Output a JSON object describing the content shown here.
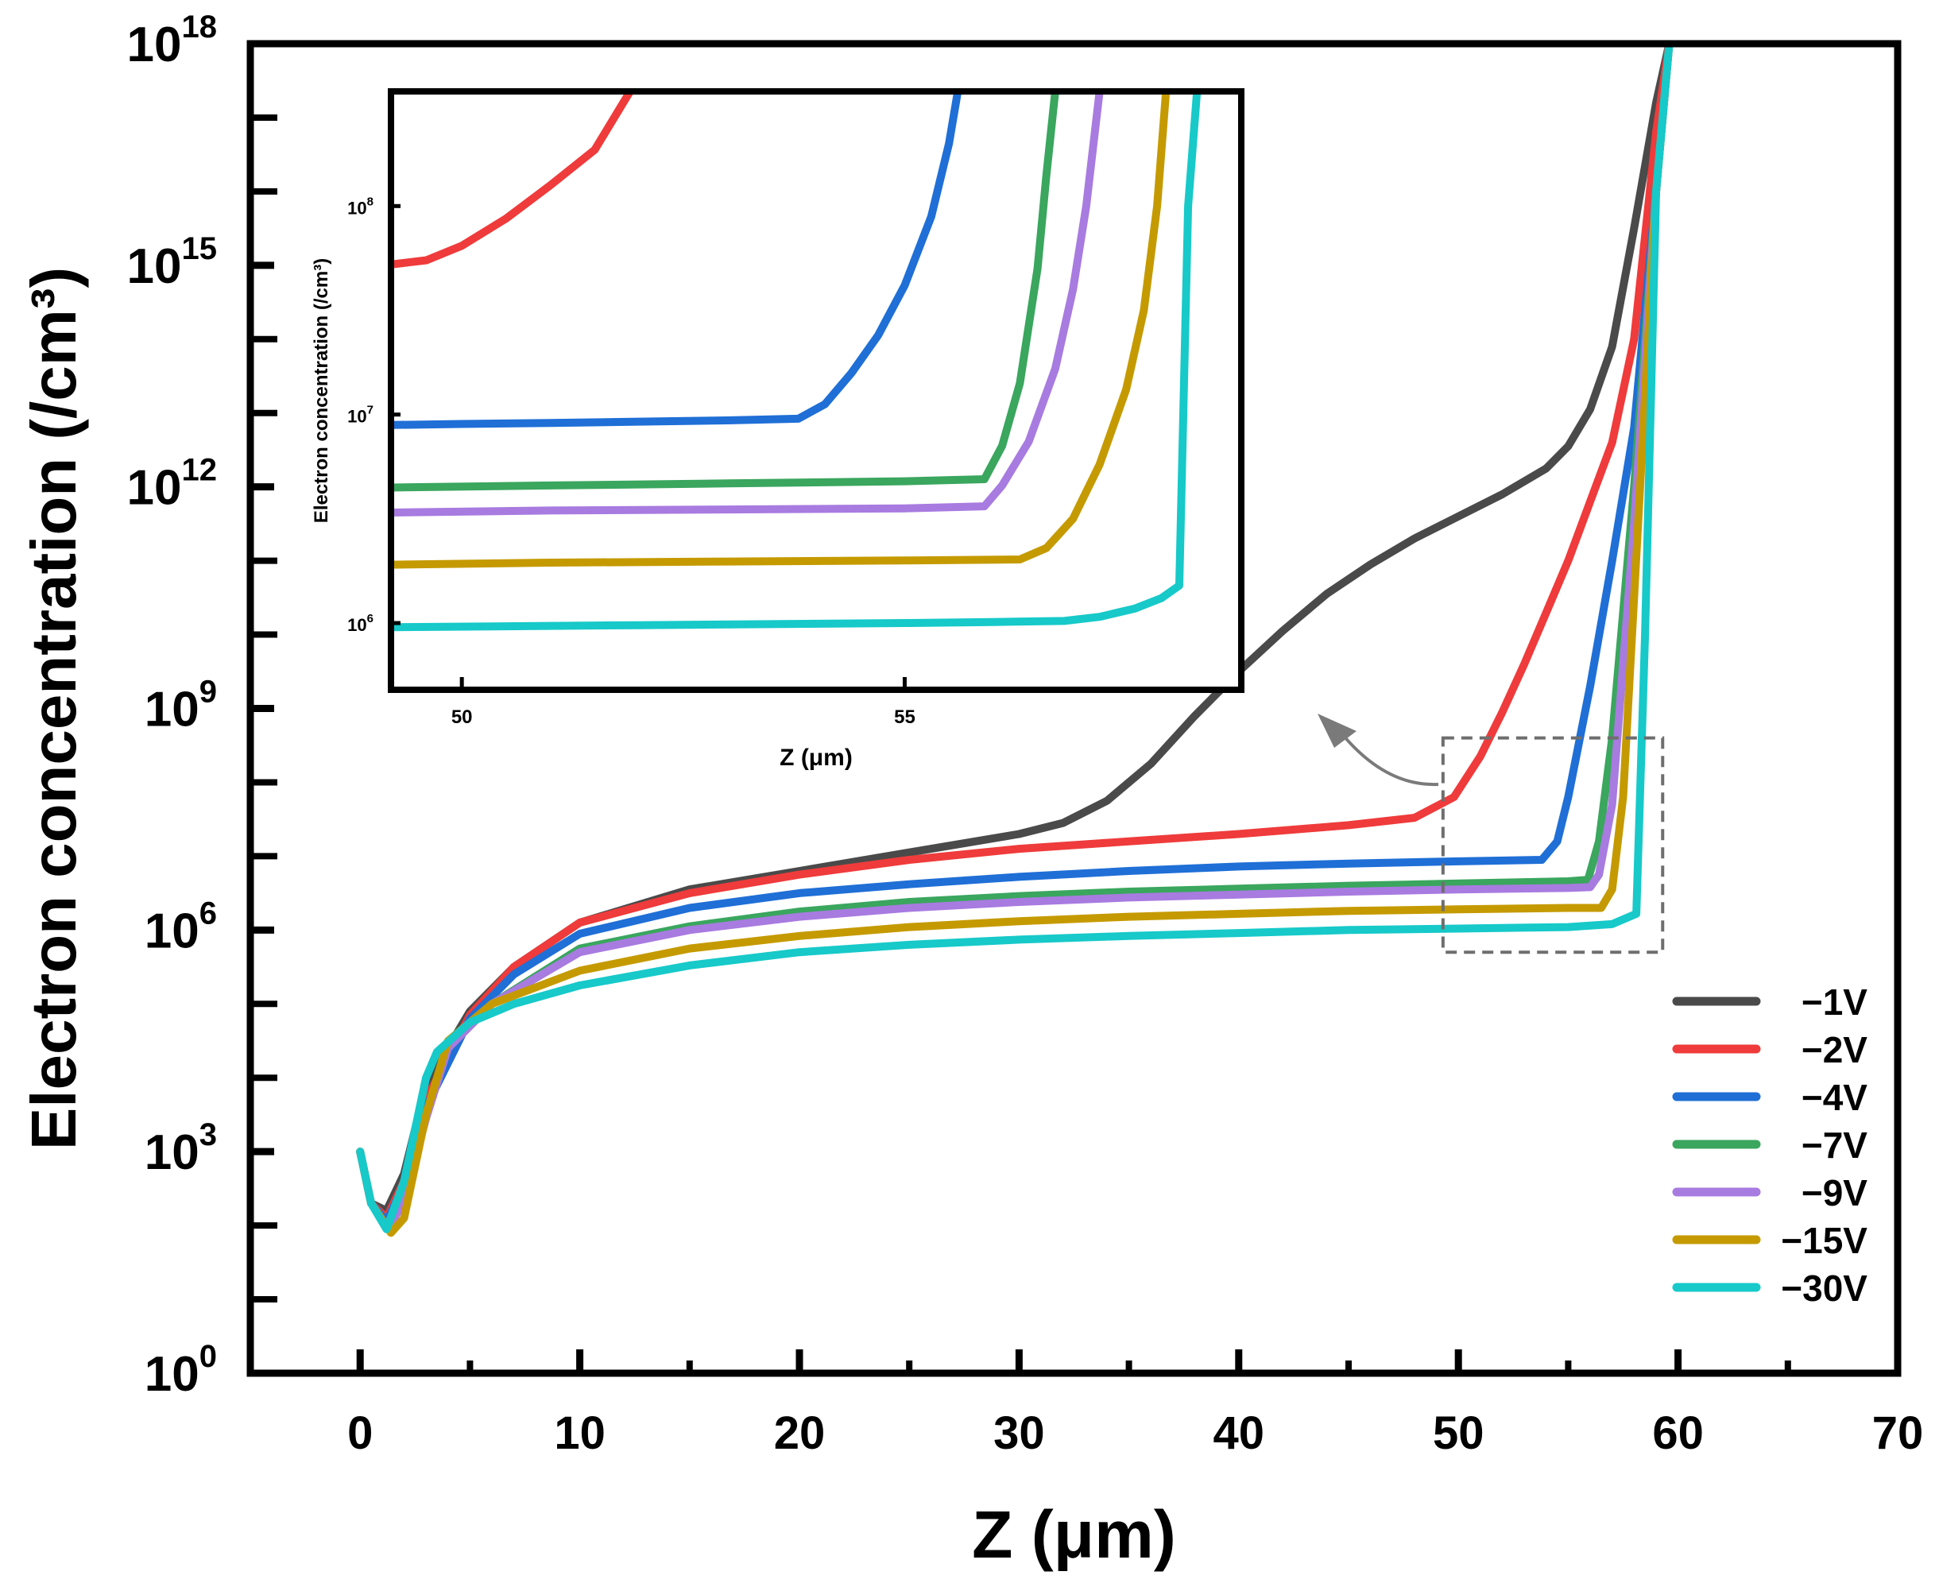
{
  "chart_data": [
    {
      "id": "main",
      "type": "line",
      "xlabel": "Z (μm)",
      "ylabel": "Electron concentration (/cm³)",
      "xlim": [
        -5,
        70
      ],
      "ylim_log10": [
        0,
        18
      ],
      "y_scale": "log",
      "x_ticks": [
        "0",
        "10",
        "20",
        "30",
        "40",
        "50",
        "60",
        "70"
      ],
      "y_ticks": [
        {
          "base": "10",
          "exp": "0"
        },
        {
          "base": "10",
          "exp": "3"
        },
        {
          "base": "10",
          "exp": "6"
        },
        {
          "base": "10",
          "exp": "9"
        },
        {
          "base": "10",
          "exp": "12"
        },
        {
          "base": "10",
          "exp": "15"
        },
        {
          "base": "10",
          "exp": "18"
        }
      ],
      "legend_position": "bottom-right",
      "series": [
        {
          "name": "−1V",
          "color": "#4a4a4a",
          "x": [
            0,
            0.5,
            1.2,
            2,
            3,
            5,
            7,
            10,
            15,
            20,
            25,
            30,
            32,
            34,
            36,
            38,
            40,
            42,
            44,
            46,
            48,
            50,
            52,
            54,
            55,
            56,
            57,
            58,
            59,
            59.6
          ],
          "y_log10": [
            3.0,
            2.3,
            2.2,
            2.7,
            3.9,
            4.9,
            5.5,
            6.1,
            6.55,
            6.8,
            7.05,
            7.3,
            7.45,
            7.75,
            8.25,
            8.9,
            9.5,
            10.05,
            10.55,
            10.95,
            11.3,
            11.6,
            11.9,
            12.25,
            12.55,
            13.05,
            13.9,
            15.5,
            17.2,
            18.0
          ]
        },
        {
          "name": "−2V",
          "color": "#ef3b3b",
          "x": [
            0,
            0.5,
            1.2,
            2,
            3,
            5,
            7,
            10,
            15,
            20,
            25,
            30,
            35,
            40,
            45,
            48,
            49.8,
            51,
            52,
            53,
            54,
            55,
            56,
            57,
            58,
            59,
            59.6
          ],
          "y_log10": [
            3.0,
            2.3,
            2.1,
            2.6,
            3.7,
            4.85,
            5.5,
            6.1,
            6.5,
            6.75,
            6.95,
            7.1,
            7.2,
            7.3,
            7.42,
            7.52,
            7.8,
            8.35,
            8.95,
            9.6,
            10.3,
            11.0,
            11.8,
            12.6,
            14.0,
            16.8,
            18.0
          ]
        },
        {
          "name": "−4V",
          "color": "#1f6fd6",
          "x": [
            0,
            0.5,
            1.2,
            2,
            3,
            5,
            7,
            10,
            15,
            20,
            25,
            30,
            35,
            40,
            45,
            50,
            53.8,
            54.5,
            55,
            56,
            57,
            58,
            59,
            59.6
          ],
          "y_log10": [
            3.0,
            2.3,
            2.05,
            2.55,
            3.6,
            4.8,
            5.4,
            5.95,
            6.3,
            6.5,
            6.62,
            6.72,
            6.8,
            6.86,
            6.9,
            6.93,
            6.95,
            7.2,
            7.8,
            9.3,
            11.0,
            12.8,
            16.0,
            18.0
          ]
        },
        {
          "name": "−7V",
          "color": "#3aa65e",
          "x": [
            0,
            0.5,
            1.3,
            2,
            3,
            4,
            6,
            10,
            15,
            20,
            25,
            30,
            35,
            40,
            45,
            50,
            55,
            55.9,
            56.4,
            57,
            58,
            59,
            59.6
          ],
          "y_log10": [
            3.0,
            2.3,
            1.95,
            2.4,
            3.5,
            4.4,
            5.0,
            5.75,
            6.05,
            6.25,
            6.38,
            6.46,
            6.52,
            6.56,
            6.6,
            6.63,
            6.66,
            6.68,
            7.2,
            8.6,
            12.0,
            16.0,
            18.0
          ]
        },
        {
          "name": "−9V",
          "color": "#a87be0",
          "x": [
            0,
            0.5,
            1.3,
            2,
            3,
            4,
            6,
            10,
            15,
            20,
            25,
            30,
            35,
            40,
            45,
            50,
            55,
            56,
            56.4,
            57,
            58,
            59,
            59.6
          ],
          "y_log10": [
            3.0,
            2.3,
            1.95,
            2.35,
            3.45,
            4.4,
            5.0,
            5.7,
            6.0,
            6.18,
            6.3,
            6.38,
            6.44,
            6.48,
            6.52,
            6.55,
            6.57,
            6.58,
            6.75,
            7.7,
            11.5,
            16.0,
            18.0
          ]
        },
        {
          "name": "−15V",
          "color": "#c59a00",
          "x": [
            0,
            0.5,
            1.4,
            2,
            3,
            4,
            6,
            10,
            15,
            20,
            25,
            30,
            35,
            40,
            45,
            50,
            55,
            56.5,
            57,
            57.5,
            58,
            59,
            59.6
          ],
          "y_log10": [
            3.0,
            2.3,
            1.9,
            2.1,
            3.5,
            4.5,
            5.0,
            5.45,
            5.75,
            5.92,
            6.04,
            6.12,
            6.18,
            6.22,
            6.26,
            6.28,
            6.3,
            6.3,
            6.55,
            7.8,
            10.5,
            16.0,
            18.0
          ]
        },
        {
          "name": "−30V",
          "color": "#17c9c9",
          "x": [
            0,
            0.5,
            1.2,
            2,
            3,
            3.5,
            5,
            7,
            10,
            15,
            20,
            25,
            30,
            35,
            40,
            45,
            50,
            55,
            57,
            58.1,
            58.5,
            59,
            59.6
          ],
          "y_log10": [
            3.0,
            2.3,
            1.95,
            2.6,
            4.0,
            4.35,
            4.75,
            5.0,
            5.25,
            5.52,
            5.7,
            5.8,
            5.87,
            5.92,
            5.96,
            6.0,
            6.02,
            6.04,
            6.08,
            6.22,
            10.0,
            16.0,
            18.0
          ]
        }
      ],
      "zoom_box": {
        "x": [
          49.3,
          59.3
        ],
        "y_log10": [
          5.7,
          8.6
        ]
      }
    },
    {
      "id": "inset",
      "type": "line",
      "xlabel": "Z (μm)",
      "ylabel": "Electron concentration (/cm³)",
      "xlim": [
        49.2,
        58.8
      ],
      "ylim_log10": [
        5.68,
        8.55
      ],
      "y_scale": "log",
      "x_ticks": [
        "50",
        "55"
      ],
      "y_ticks": [
        {
          "base": "10",
          "exp": "6"
        },
        {
          "base": "10",
          "exp": "7"
        },
        {
          "base": "10",
          "exp": "8"
        }
      ],
      "series": [
        {
          "name": "−2V",
          "color": "#ef3b3b",
          "x": [
            49.2,
            49.6,
            50.0,
            50.5,
            51.0,
            51.5,
            51.9
          ],
          "y_log10": [
            7.72,
            7.74,
            7.81,
            7.94,
            8.1,
            8.27,
            8.55
          ]
        },
        {
          "name": "−4V",
          "color": "#1f6fd6",
          "x": [
            49.2,
            50,
            51,
            52,
            53,
            53.8,
            54.1,
            54.4,
            54.7,
            55.0,
            55.3,
            55.5,
            55.6
          ],
          "y_log10": [
            6.95,
            6.955,
            6.96,
            6.966,
            6.972,
            6.98,
            7.05,
            7.2,
            7.38,
            7.62,
            7.95,
            8.3,
            8.55
          ]
        },
        {
          "name": "−7V",
          "color": "#3aa65e",
          "x": [
            49.2,
            51,
            53,
            55,
            55.9,
            56.1,
            56.3,
            56.5,
            56.6,
            56.7
          ],
          "y_log10": [
            6.65,
            6.66,
            6.67,
            6.68,
            6.69,
            6.85,
            7.15,
            7.7,
            8.15,
            8.55
          ]
        },
        {
          "name": "−9V",
          "color": "#a87be0",
          "x": [
            49.2,
            51,
            53,
            55,
            55.9,
            56.1,
            56.4,
            56.7,
            56.9,
            57.05,
            57.2
          ],
          "y_log10": [
            6.53,
            6.54,
            6.545,
            6.55,
            6.56,
            6.66,
            6.87,
            7.22,
            7.6,
            8.0,
            8.55
          ]
        },
        {
          "name": "−15V",
          "color": "#c59a00",
          "x": [
            49.2,
            51,
            53,
            55,
            56.3,
            56.6,
            56.9,
            57.2,
            57.5,
            57.7,
            57.85,
            57.95
          ],
          "y_log10": [
            6.28,
            6.29,
            6.295,
            6.3,
            6.305,
            6.36,
            6.5,
            6.76,
            7.12,
            7.5,
            8.0,
            8.55
          ]
        },
        {
          "name": "−30V",
          "color": "#17c9c9",
          "x": [
            49.2,
            52,
            55,
            56,
            56.8,
            57.2,
            57.6,
            57.9,
            58.1,
            58.2,
            58.3
          ],
          "y_log10": [
            5.98,
            5.99,
            6.0,
            6.005,
            6.01,
            6.03,
            6.07,
            6.12,
            6.18,
            8.0,
            8.55
          ]
        }
      ]
    }
  ]
}
